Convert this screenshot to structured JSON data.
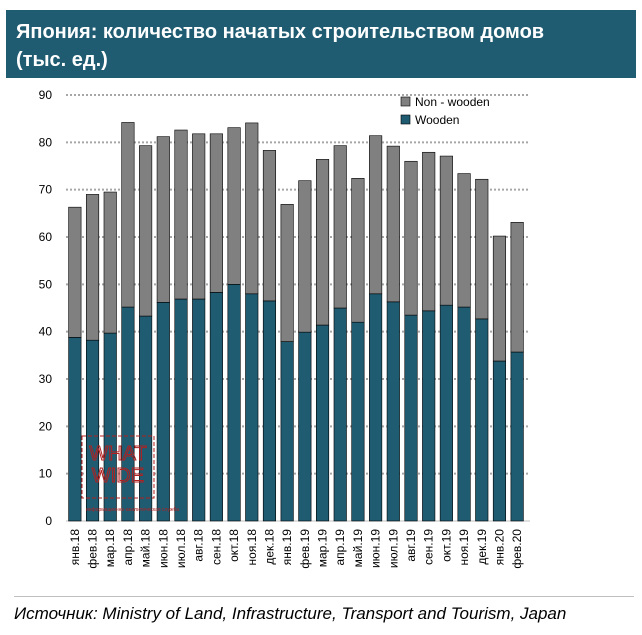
{
  "header": {
    "title_line1": "Япония: количество начатых строительством домов",
    "title_line2": "(тыс. ед.)"
  },
  "source": "Источник: Ministry of Land, Infrastructure, Transport and Tourism, Japan",
  "colors": {
    "header_bg": "#1f5c72",
    "wooden": "#1f5c72",
    "non_wooden": "#808080",
    "grid": "#a6a6a6"
  },
  "watermark": {
    "text": "WHAT WIDE",
    "caption": "информационно-аналитическая служба"
  },
  "chart_data": {
    "type": "bar",
    "stacked": true,
    "categories": [
      "янв.18",
      "фев.18",
      "мар.18",
      "апр.18",
      "май.18",
      "июн.18",
      "июл.18",
      "авг.18",
      "сен.18",
      "окт.18",
      "ноя.18",
      "дек.18",
      "янв.19",
      "фев.19",
      "мар.19",
      "апр.19",
      "май.19",
      "июн.19",
      "июл.19",
      "авг.19",
      "сен.19",
      "окт.19",
      "ноя.19",
      "дек.19",
      "янв.20",
      "фев.20"
    ],
    "series": [
      {
        "name": "Wooden",
        "color": "#1f5c72",
        "values": [
          38.8,
          38.2,
          39.7,
          45.2,
          43.3,
          46.2,
          46.9,
          46.9,
          48.3,
          50.0,
          48.0,
          46.5,
          37.9,
          39.9,
          41.4,
          45.0,
          42.0,
          48.0,
          46.3,
          43.5,
          44.4,
          45.6,
          45.2,
          42.7,
          33.8,
          35.7
        ]
      },
      {
        "name": "Non - wooden",
        "color": "#808080",
        "values": [
          27.5,
          30.8,
          29.8,
          39.0,
          36.0,
          35.0,
          35.7,
          34.9,
          33.5,
          33.1,
          36.1,
          31.8,
          29.0,
          32.0,
          35.0,
          34.3,
          30.4,
          33.4,
          32.9,
          32.5,
          33.5,
          31.5,
          28.2,
          29.5,
          26.4,
          27.4
        ]
      }
    ],
    "yticks": [
      0,
      10,
      20,
      30,
      40,
      50,
      60,
      70,
      80,
      90
    ],
    "ylim": [
      0,
      90
    ],
    "legend": [
      "Non - wooden",
      "Wooden"
    ],
    "legend_position": "top-right",
    "grid": "horizontal dotted"
  }
}
